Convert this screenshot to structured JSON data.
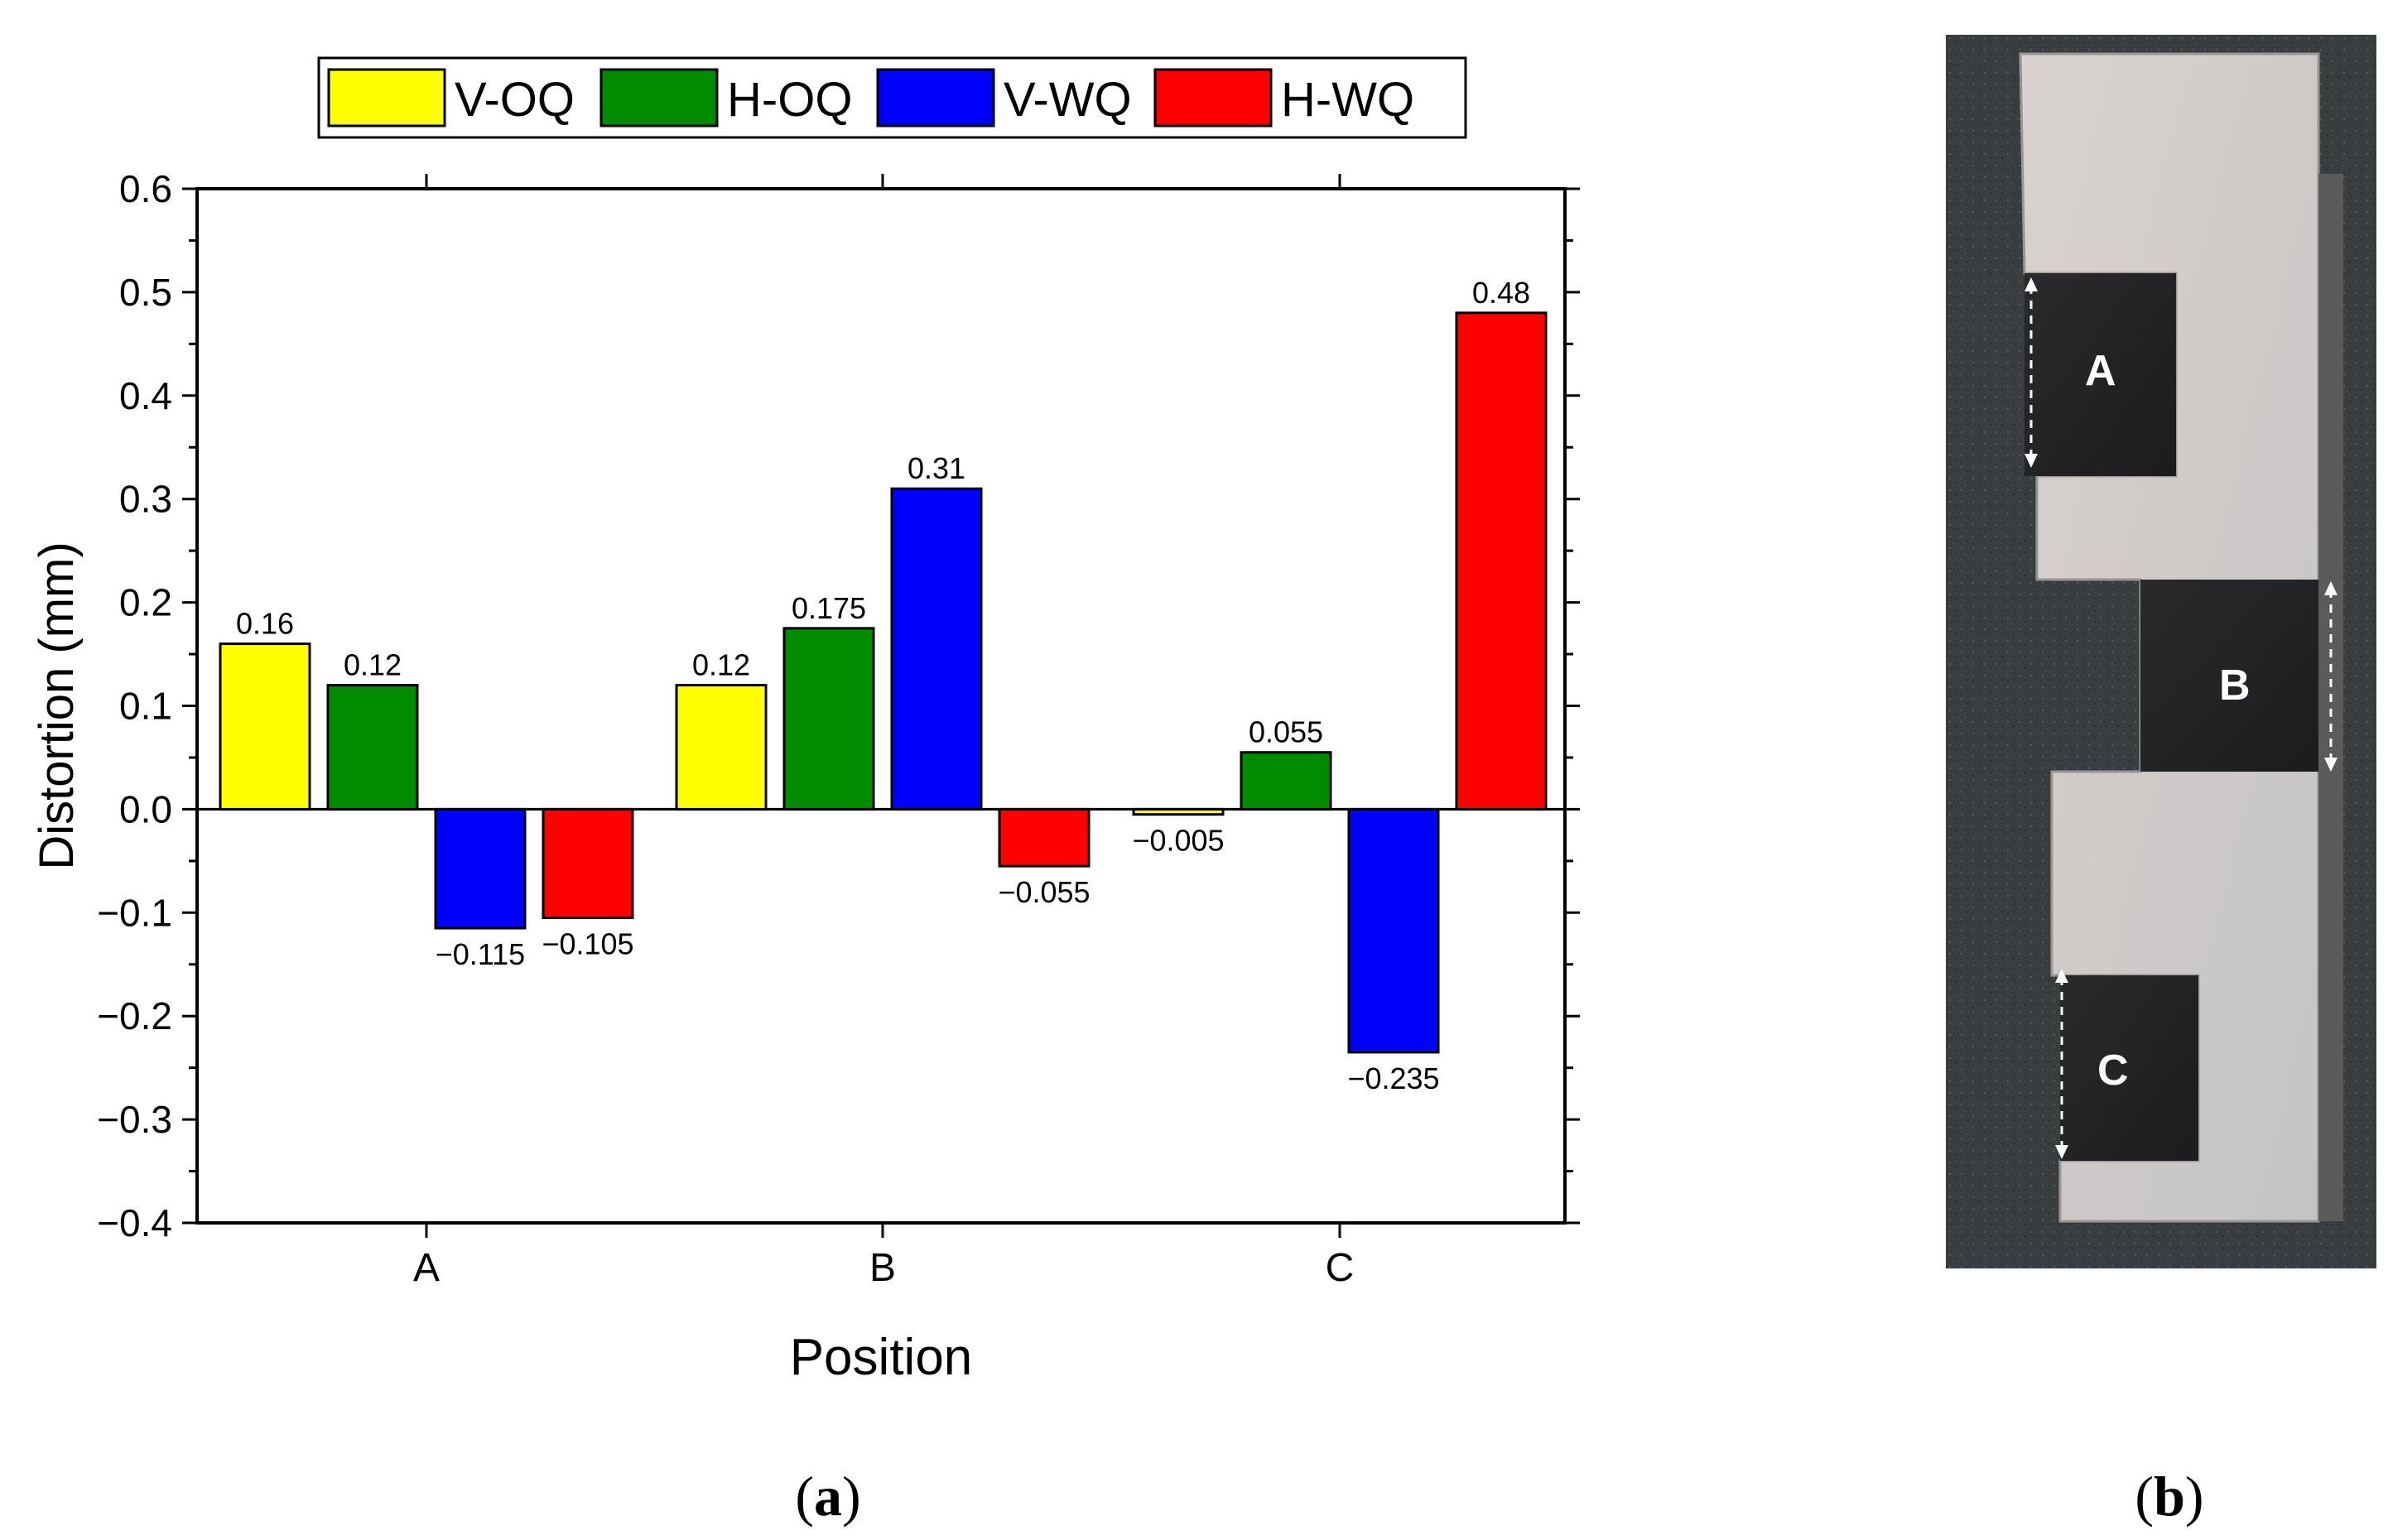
{
  "chart_data": {
    "type": "bar",
    "categories": [
      "A",
      "B",
      "C"
    ],
    "series": [
      {
        "name": "V-OQ",
        "color": "#ffff00",
        "values": [
          0.16,
          0.12,
          -0.005
        ],
        "labels": [
          "0.16",
          "0.12",
          "−0.005"
        ]
      },
      {
        "name": "H-OQ",
        "color": "#008c00",
        "values": [
          0.12,
          0.175,
          0.055
        ],
        "labels": [
          "0.12",
          "0.175",
          "0.055"
        ]
      },
      {
        "name": "V-WQ",
        "color": "#0000ff",
        "values": [
          -0.115,
          0.31,
          -0.235
        ],
        "labels": [
          "−0.115",
          "0.31",
          "−0.235"
        ]
      },
      {
        "name": "H-WQ",
        "color": "#ff0000",
        "values": [
          -0.105,
          -0.055,
          0.48
        ],
        "labels": [
          "−0.105",
          "−0.055",
          "0.48"
        ]
      }
    ],
    "xlabel": "Position",
    "ylabel": "Distortion (mm)",
    "ylim": [
      -0.4,
      0.6
    ],
    "yticks": [
      -0.4,
      -0.3,
      -0.2,
      -0.1,
      0.0,
      0.1,
      0.2,
      0.3,
      0.4,
      0.5,
      0.6
    ],
    "ytick_labels": [
      "−0.4",
      "−0.3",
      "−0.2",
      "−0.1",
      "0.0",
      "0.1",
      "0.2",
      "0.3",
      "0.4",
      "0.5",
      "0.6"
    ],
    "legend_position": "top"
  },
  "captions": {
    "panel_a": "a",
    "panel_b": "b"
  },
  "photo": {
    "labels": [
      "A",
      "B",
      "C"
    ]
  }
}
